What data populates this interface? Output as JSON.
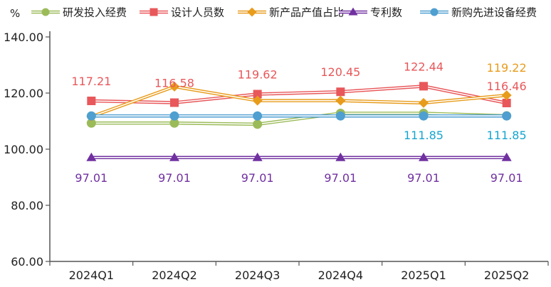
{
  "chart_data": {
    "type": "line",
    "ylabel": "%",
    "ylim": [
      60,
      140
    ],
    "y_ticks": [
      "60.00",
      "80.00",
      "100.00",
      "120.00",
      "140.00"
    ],
    "y_tick_values": [
      60,
      80,
      100,
      120,
      140
    ],
    "categories": [
      "2024Q1",
      "2024Q2",
      "2024Q3",
      "2024Q4",
      "2025Q1",
      "2025Q2"
    ],
    "grid": false,
    "legend_position": "top",
    "series": [
      {
        "name": "研发投入经费",
        "color": "#9bbb59",
        "marker": "circle",
        "values": [
          109.3,
          109.3,
          108.9,
          112.8,
          112.8,
          111.9
        ],
        "labels": [
          "",
          "",
          "",
          "",
          "",
          ""
        ]
      },
      {
        "name": "设计人员数",
        "color": "#e8575a",
        "marker": "square",
        "values": [
          117.21,
          116.58,
          119.62,
          120.45,
          122.44,
          116.46
        ],
        "labels": [
          "117.21",
          "116.58",
          "119.62",
          "120.45",
          "122.44",
          "116.46"
        ]
      },
      {
        "name": "新产品产值占比",
        "color": "#e89c1c",
        "marker": "diamond",
        "values": [
          111.6,
          122.3,
          117.3,
          117.3,
          116.5,
          119.22
        ],
        "labels": [
          "",
          "",
          "",
          "",
          "",
          "119.22"
        ]
      },
      {
        "name": "专利数",
        "color": "#7030a0",
        "marker": "triangle",
        "values": [
          97.01,
          97.01,
          97.01,
          97.01,
          97.01,
          97.01
        ],
        "labels": [
          "97.01",
          "97.01",
          "97.01",
          "97.01",
          "97.01",
          "97.01"
        ]
      },
      {
        "name": "新购先进设备经费",
        "color": "#4f9fd0",
        "marker": "circle",
        "values": [
          111.85,
          111.85,
          111.85,
          111.85,
          111.85,
          111.85
        ],
        "labels": [
          "",
          "",
          "",
          "",
          "111.85",
          "111.85"
        ],
        "label_color": "#16a5cf"
      }
    ]
  }
}
